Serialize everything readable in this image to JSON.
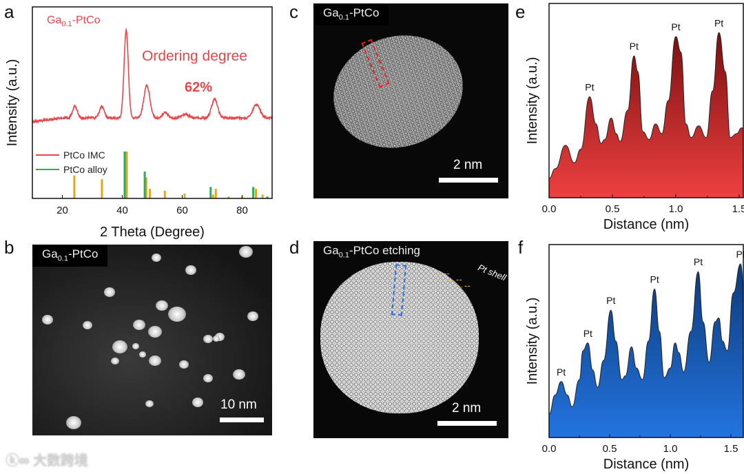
{
  "panels": {
    "a": "a",
    "b": "b",
    "c": "c",
    "d": "d",
    "e": "e",
    "f": "f"
  },
  "images": {
    "b": {
      "title_pre": "Ga",
      "title_sub": "0.1",
      "title_post": "-PtCo",
      "scale": "10 nm"
    },
    "c": {
      "title_pre": "Ga",
      "title_sub": "0.1",
      "title_post": "-PtCo",
      "scale": "2 nm",
      "box_color": "#e02020"
    },
    "d": {
      "title_pre": "Ga",
      "title_sub": "0.1",
      "title_post": "-PtCo etching",
      "scale": "2 nm",
      "annotation": "Pt shell",
      "box_color": "#2a6ee0",
      "arrow_color": "#f0b020"
    }
  },
  "watermark": "大数跨境",
  "chart_data": [
    {
      "type": "line",
      "id": "a",
      "title_pre": "Ga",
      "title_sub": "0.1",
      "title_post": "-PtCo",
      "annotation": "Ordering degree",
      "annotation_value": "62%",
      "xlabel": "2 Theta (Degree)",
      "ylabel": "Intensity (a.u.)",
      "xlim": [
        10,
        90
      ],
      "ylim": [
        0,
        1
      ],
      "xticks": [
        20,
        40,
        60,
        80
      ],
      "color": "#e8464a",
      "baseline": 0.42,
      "peaks": [
        {
          "x": 24.2,
          "h": 0.06,
          "w": 0.8
        },
        {
          "x": 33.2,
          "h": 0.06,
          "w": 0.8
        },
        {
          "x": 41.3,
          "h": 0.46,
          "w": 0.7
        },
        {
          "x": 48.2,
          "h": 0.17,
          "w": 1.0
        },
        {
          "x": 54.3,
          "h": 0.03,
          "w": 0.8
        },
        {
          "x": 61,
          "h": 0.02,
          "w": 1.2
        },
        {
          "x": 70.8,
          "h": 0.1,
          "w": 1.0
        },
        {
          "x": 84.8,
          "h": 0.07,
          "w": 1.2
        }
      ],
      "legend": [
        {
          "name": "PtCo IMC",
          "color": "#e8464a"
        },
        {
          "name": "PtCo alloy",
          "color": "#2aae5e"
        }
      ],
      "sticks": [
        {
          "name": "PtCo IMC",
          "color": "#e0a820",
          "x": [
            24,
            33.2,
            41.5,
            48,
            49.2,
            54.2,
            60.8,
            70.3,
            71.2,
            75.5,
            80,
            84.6,
            86.8
          ],
          "y": [
            0.12,
            0.1,
            0.245,
            0.11,
            0.05,
            0.04,
            0.025,
            0.02,
            0.05,
            0.01,
            0.01,
            0.05,
            0.02
          ]
        },
        {
          "name": "PtCo alloy",
          "color": "#2aae5e",
          "x": [
            40.8,
            47.5,
            69.5,
            83.7,
            88.4
          ],
          "y": [
            0.245,
            0.14,
            0.06,
            0.06,
            0.01
          ]
        }
      ]
    },
    {
      "type": "area",
      "id": "e",
      "xlabel": "Distance (nm)",
      "ylabel": "Intensity (a.u.)",
      "xlim": [
        0,
        1.53
      ],
      "ylim": [
        0,
        1
      ],
      "xticks": [
        "0.0",
        "0.5",
        "1.0",
        "1.5"
      ],
      "color_top": "#7a1010",
      "color_bottom": "#ee4040",
      "x": [
        0,
        0.05,
        0.13,
        0.2,
        0.25,
        0.32,
        0.37,
        0.41,
        0.44,
        0.49,
        0.53,
        0.56,
        0.62,
        0.67,
        0.7,
        0.74,
        0.79,
        0.84,
        0.89,
        0.94,
        1.0,
        1.04,
        1.08,
        1.12,
        1.18,
        1.24,
        1.29,
        1.34,
        1.39,
        1.43,
        1.48,
        1.52,
        1.56
      ],
      "y": [
        0.1,
        0.15,
        0.27,
        0.18,
        0.25,
        0.52,
        0.38,
        0.28,
        0.3,
        0.41,
        0.33,
        0.29,
        0.45,
        0.73,
        0.65,
        0.34,
        0.3,
        0.38,
        0.33,
        0.5,
        0.83,
        0.75,
        0.38,
        0.31,
        0.37,
        0.31,
        0.55,
        0.85,
        0.65,
        0.31,
        0.33,
        0.36,
        0.34
      ],
      "labels": [
        {
          "x": 0.32,
          "y": 0.52,
          "text": "Pt"
        },
        {
          "x": 0.67,
          "y": 0.73,
          "text": "Pt"
        },
        {
          "x": 1.0,
          "y": 0.83,
          "text": "Pt"
        },
        {
          "x": 1.34,
          "y": 0.85,
          "text": "Pt"
        }
      ]
    },
    {
      "type": "area",
      "id": "f",
      "xlabel": "Distance (nm)",
      "ylabel": "Intensity (a.u.)",
      "xlim": [
        0,
        1.6
      ],
      "ylim": [
        0,
        1
      ],
      "xticks": [
        "0.0",
        "0.5",
        "1.0",
        "1.5"
      ],
      "color_top": "#0d3a78",
      "color_bottom": "#2374e0",
      "x": [
        0,
        0.05,
        0.1,
        0.15,
        0.19,
        0.25,
        0.28,
        0.32,
        0.36,
        0.4,
        0.45,
        0.51,
        0.55,
        0.6,
        0.63,
        0.68,
        0.72,
        0.77,
        0.82,
        0.87,
        0.91,
        0.95,
        1.0,
        1.04,
        1.07,
        1.11,
        1.17,
        1.23,
        1.27,
        1.32,
        1.37,
        1.4,
        1.43,
        1.47,
        1.52,
        1.58,
        1.62
      ],
      "y": [
        0.12,
        0.22,
        0.29,
        0.22,
        0.16,
        0.3,
        0.45,
        0.49,
        0.35,
        0.26,
        0.4,
        0.66,
        0.5,
        0.3,
        0.32,
        0.47,
        0.36,
        0.3,
        0.5,
        0.77,
        0.55,
        0.31,
        0.36,
        0.49,
        0.44,
        0.34,
        0.55,
        0.86,
        0.6,
        0.39,
        0.6,
        0.62,
        0.5,
        0.45,
        0.75,
        0.9,
        0.6
      ],
      "labels": [
        {
          "x": 0.1,
          "y": 0.29,
          "text": "Pt"
        },
        {
          "x": 0.32,
          "y": 0.49,
          "text": "Pt"
        },
        {
          "x": 0.51,
          "y": 0.66,
          "text": "Pt"
        },
        {
          "x": 0.87,
          "y": 0.77,
          "text": "Pt"
        },
        {
          "x": 1.23,
          "y": 0.86,
          "text": "Pt"
        },
        {
          "x": 1.58,
          "y": 0.9,
          "text": "Pt"
        }
      ]
    }
  ]
}
